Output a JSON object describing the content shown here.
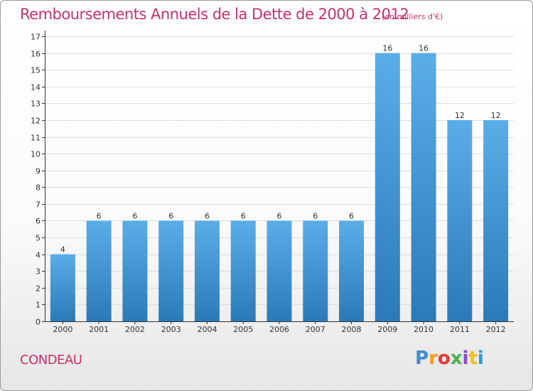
{
  "header": {
    "title": "Remboursements Annuels de la Dette de 2000 à 2012",
    "unit": "(en milliers d'€)"
  },
  "footer": {
    "commune": "CONDEAU",
    "logo_letters": [
      "P",
      "r",
      "o",
      "x",
      "i",
      "t",
      "i"
    ],
    "logo_colors": [
      "#3f8fd0",
      "#f0a020",
      "#e23a3a",
      "#49b24a",
      "#8a4ec2",
      "#f3c21d",
      "#2a9fd6"
    ]
  },
  "colors": {
    "bar_top": "#5aaee8",
    "bar_bottom": "#2a7ab8",
    "grid": "#dddddd",
    "axis": "#333333"
  },
  "chart_data": {
    "type": "bar",
    "title": "Remboursements Annuels de la Dette de 2000 à 2012",
    "ylabel": "(en milliers d'€)",
    "xlabel": "",
    "categories": [
      "2000",
      "2001",
      "2002",
      "2003",
      "2004",
      "2005",
      "2006",
      "2007",
      "2008",
      "2009",
      "2010",
      "2011",
      "2012"
    ],
    "values": [
      4,
      6,
      6,
      6,
      6,
      6,
      6,
      6,
      6,
      16,
      16,
      12,
      12
    ],
    "data_labels": [
      "4",
      "6",
      "6",
      "6",
      "6",
      "6",
      "6",
      "6",
      "6",
      "16",
      "16",
      "12",
      "12"
    ],
    "ylim": [
      0,
      17
    ],
    "yticks": [
      0,
      1,
      2,
      3,
      4,
      5,
      6,
      7,
      8,
      9,
      10,
      11,
      12,
      13,
      14,
      15,
      16,
      17
    ],
    "grid": true
  }
}
